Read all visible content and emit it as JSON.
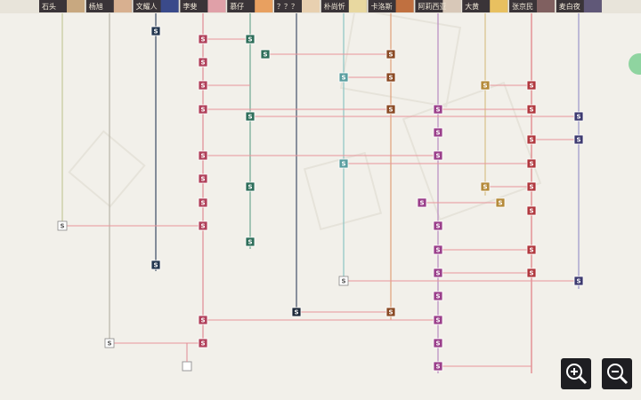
{
  "columns": [
    {
      "name": "石头",
      "color": "#c5c89a"
    },
    {
      "name": "杨旭",
      "color": "#b8b4a8"
    },
    {
      "name": "文耀人",
      "color": "#3a4a63"
    },
    {
      "name": "李斐",
      "color": "#e08a94"
    },
    {
      "name": "慕仔",
      "color": "#6fa892"
    },
    {
      "name": "？？？",
      "color": "#44506a"
    },
    {
      "name": "朴尚忻",
      "color": "#8cc4c4"
    },
    {
      "name": "卡洛斯",
      "color": "#e0a07a"
    },
    {
      "name": "阿莉西亚",
      "color": "#b88ac0"
    },
    {
      "name": "大黄",
      "color": "#d8c088"
    },
    {
      "name": "张京民",
      "color": "#e07a80"
    },
    {
      "name": "麦白夜",
      "color": "#9a94c8"
    }
  ],
  "nodes": [
    {
      "label": "S"
    },
    {
      "label": "S"
    },
    {
      "label": "S"
    },
    {
      "label": "S"
    },
    {
      "label": "S"
    },
    {
      "label": "S"
    },
    {
      "label": "S"
    },
    {
      "label": "S"
    },
    {
      "label": "S"
    },
    {
      "label": "S"
    },
    {
      "label": "S"
    },
    {
      "label": "S"
    },
    {
      "label": "S"
    },
    {
      "label": "S"
    },
    {
      "label": "S"
    },
    {
      "label": "S"
    },
    {
      "label": "S"
    },
    {
      "label": "S"
    },
    {
      "label": "S"
    },
    {
      "label": "S"
    },
    {
      "label": "S"
    },
    {
      "label": "S"
    },
    {
      "label": "S"
    },
    {
      "label": "S"
    },
    {
      "label": "S"
    },
    {
      "label": "S"
    },
    {
      "label": "S"
    },
    {
      "label": "S"
    },
    {
      "label": "S"
    },
    {
      "label": "S"
    },
    {
      "label": "S"
    },
    {
      "label": "S"
    },
    {
      "label": "S"
    },
    {
      "label": "S"
    },
    {
      "label": "S"
    },
    {
      "label": "S"
    },
    {
      "label": "S"
    },
    {
      "label": "S"
    },
    {
      "label": "S"
    },
    {
      "label": "S"
    },
    {
      "label": "S"
    },
    {
      "label": "S"
    },
    {
      "label": "S"
    },
    {
      "label": "S"
    },
    {
      "label": "S"
    },
    {
      "label": "S"
    },
    {
      "label": "S"
    },
    {
      "label": "S"
    },
    {
      "label": "S"
    },
    {
      "label": "S"
    },
    {
      "label": "S"
    },
    {
      "label": "S"
    }
  ]
}
